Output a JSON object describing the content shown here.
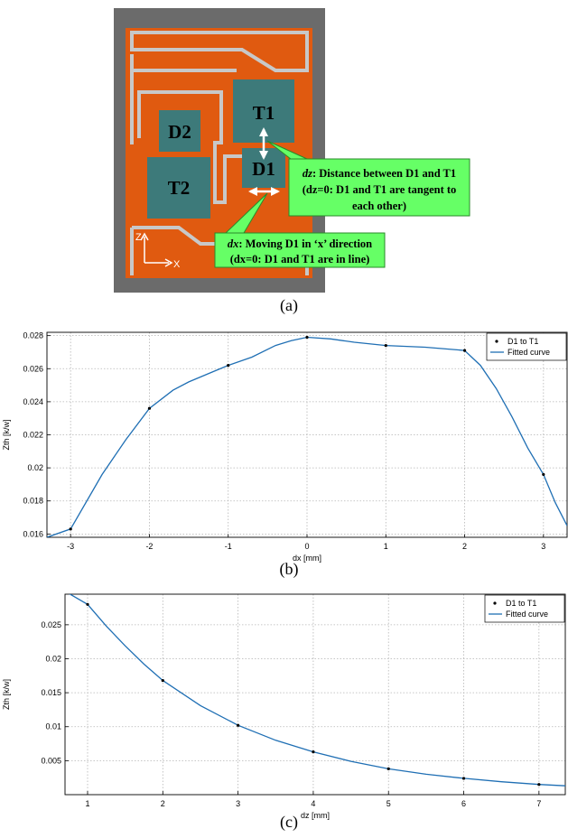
{
  "figure_a": {
    "components": [
      "T1",
      "D1",
      "D2",
      "T2"
    ],
    "callout_dz": {
      "term": "dz",
      "line1": ": Distance between D1 and T1",
      "line2": "(dz=0: D1 and T1 are tangent to",
      "line3": "each other)"
    },
    "callout_dx": {
      "term": "dx",
      "line1": ": Moving D1 in ‘x’ direction",
      "line2": "(dx=0: D1 and T1 are in line)"
    },
    "axis_z": "Z",
    "axis_x": "X",
    "colors": {
      "frame": "#6b6b6b",
      "board": "#e05a10",
      "trace": "#c8c8c8",
      "component": "#3d7a7a",
      "callout": "#66ff66"
    }
  },
  "captions": {
    "a": "(a)",
    "b": "(b)",
    "c": "(c)"
  },
  "chart_data": [
    {
      "type": "line",
      "xlabel": "dx [mm]",
      "ylabel": "Zth [k/w]",
      "xlim": [
        -3.3,
        3.3
      ],
      "ylim": [
        0.0158,
        0.0282
      ],
      "xticks": [
        -3,
        -2,
        -1,
        0,
        1,
        2,
        3
      ],
      "xtick_labels": [
        "-3",
        "-2",
        "-1",
        "0",
        "1",
        "2",
        "3"
      ],
      "yticks": [
        0.016,
        0.018,
        0.02,
        0.022,
        0.024,
        0.026,
        0.028
      ],
      "ytick_labels": [
        "0.016",
        "0.018",
        "0.02",
        "0.022",
        "0.024",
        "0.026",
        "0.028"
      ],
      "grid": true,
      "legend_position": "top-right",
      "series": [
        {
          "name": "D1 to T1",
          "style": "markers",
          "x": [
            -3,
            -2,
            -1,
            0,
            1,
            2,
            3
          ],
          "y": [
            0.0163,
            0.0236,
            0.0262,
            0.0279,
            0.0274,
            0.0271,
            0.0196
          ]
        },
        {
          "name": "Fitted curve",
          "style": "line",
          "x": [
            -3.3,
            -3,
            -2.6,
            -2.3,
            -2,
            -1.7,
            -1.5,
            -1.2,
            -1,
            -0.7,
            -0.4,
            -0.2,
            0,
            0.3,
            0.6,
            1,
            1.5,
            2,
            2.2,
            2.4,
            2.6,
            2.8,
            3,
            3.15,
            3.3
          ],
          "y": [
            0.0158,
            0.0163,
            0.0196,
            0.0217,
            0.0236,
            0.0247,
            0.0252,
            0.0258,
            0.0262,
            0.0267,
            0.0274,
            0.0277,
            0.0279,
            0.0278,
            0.0276,
            0.0274,
            0.0273,
            0.0271,
            0.0262,
            0.0248,
            0.0231,
            0.0212,
            0.0196,
            0.0179,
            0.0165
          ],
          "color": "#1f6fb4"
        }
      ]
    },
    {
      "type": "line",
      "xlabel": "dz [mm]",
      "ylabel": "Zth [k/w]",
      "xlim": [
        0.7,
        7.35
      ],
      "ylim": [
        0,
        0.0295
      ],
      "xticks": [
        1,
        2,
        3,
        4,
        5,
        6,
        7
      ],
      "xtick_labels": [
        "1",
        "2",
        "3",
        "4",
        "5",
        "6",
        "7"
      ],
      "yticks": [
        0.005,
        0.01,
        0.015,
        0.02,
        0.025
      ],
      "ytick_labels": [
        "0.005",
        "0.01",
        "0.015",
        "0.02",
        "0.025"
      ],
      "grid": true,
      "legend_position": "top-right",
      "series": [
        {
          "name": "D1 to T1",
          "style": "markers",
          "x": [
            1,
            2,
            3,
            4,
            5,
            6,
            7
          ],
          "y": [
            0.028,
            0.0168,
            0.0102,
            0.0063,
            0.0038,
            0.0024,
            0.0015
          ]
        },
        {
          "name": "Fitted curve",
          "style": "line",
          "x": [
            0.75,
            1,
            1.25,
            1.5,
            1.75,
            2,
            2.5,
            3,
            3.5,
            4,
            4.5,
            5,
            5.5,
            6,
            6.5,
            7,
            7.35
          ],
          "y": [
            0.0296,
            0.028,
            0.0248,
            0.0219,
            0.0192,
            0.0168,
            0.0131,
            0.0102,
            0.008,
            0.0063,
            0.0049,
            0.0038,
            0.003,
            0.0024,
            0.0019,
            0.0015,
            0.0013
          ],
          "color": "#1f6fb4"
        }
      ]
    }
  ]
}
